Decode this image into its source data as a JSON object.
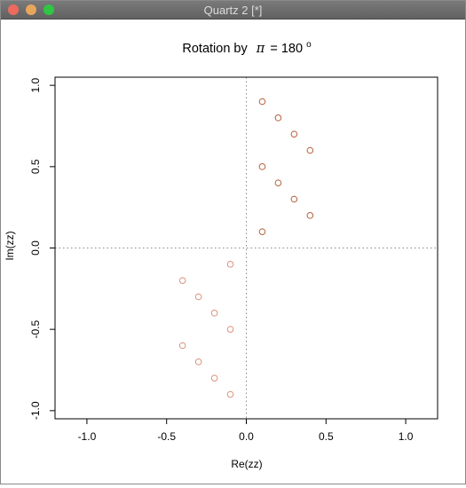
{
  "window": {
    "title": "Quartz 2 [*]",
    "buttons": {
      "close_color": "#ec6b5e",
      "minimize_color": "#e8a65c",
      "zoom_color": "#2fc644"
    }
  },
  "chart_data": {
    "type": "scatter",
    "title_prefix": "Rotation by",
    "title_symbol": "π",
    "title_value": "= 180",
    "title_superscript": "o",
    "xlabel": "Re(zz)",
    "ylabel": "Im(zz)",
    "xlim": [
      -1.2,
      1.2
    ],
    "ylim": [
      -1.05,
      1.05
    ],
    "xticks": [
      -1.0,
      -0.5,
      0.0,
      0.5,
      1.0
    ],
    "xtick_labels": [
      "-1.0",
      "-0.5",
      "0.0",
      "0.5",
      "1.0"
    ],
    "yticks": [
      -1.0,
      -0.5,
      0.0,
      0.5,
      1.0
    ],
    "ytick_labels": [
      "-1.0",
      "-0.5",
      "0.0",
      "0.5",
      "1.0"
    ],
    "reference_lines": {
      "x": 0,
      "y": 0,
      "style": "dotted"
    },
    "series": [
      {
        "color": "#b5623d",
        "points": [
          [
            0.1,
            0.9
          ],
          [
            0.2,
            0.8
          ],
          [
            0.3,
            0.7
          ],
          [
            0.4,
            0.6
          ],
          [
            0.1,
            0.5
          ],
          [
            0.2,
            0.4
          ],
          [
            0.3,
            0.3
          ],
          [
            0.4,
            0.2
          ],
          [
            0.1,
            0.1
          ]
        ]
      },
      {
        "color": "#d9937c",
        "points": [
          [
            -0.1,
            -0.1
          ],
          [
            -0.4,
            -0.2
          ],
          [
            -0.3,
            -0.3
          ],
          [
            -0.2,
            -0.4
          ],
          [
            -0.1,
            -0.5
          ],
          [
            -0.4,
            -0.6
          ],
          [
            -0.3,
            -0.7
          ],
          [
            -0.2,
            -0.8
          ],
          [
            -0.1,
            -0.9
          ]
        ]
      }
    ]
  }
}
